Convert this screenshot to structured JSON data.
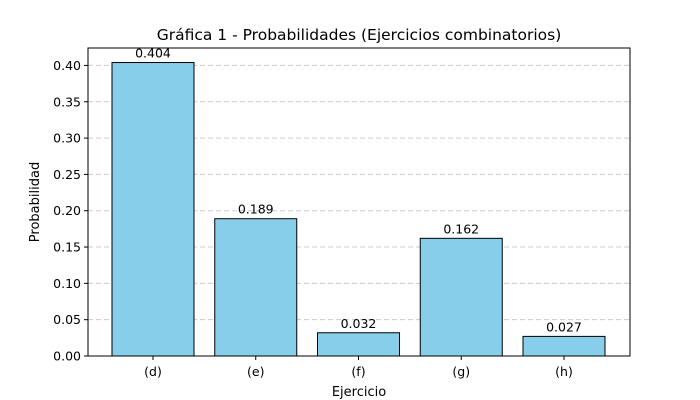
{
  "chart_data": {
    "type": "bar",
    "title": "Gráfica 1 - Probabilidades (Ejercicios combinatorios)",
    "xlabel": "Ejercicio",
    "ylabel": "Probabilidad",
    "categories": [
      "(d)",
      "(e)",
      "(f)",
      "(g)",
      "(h)"
    ],
    "values": [
      0.404,
      0.189,
      0.032,
      0.162,
      0.027
    ],
    "data_labels": [
      "0.404",
      "0.189",
      "0.032",
      "0.162",
      "0.027"
    ],
    "y_ticks": [
      0.0,
      0.05,
      0.1,
      0.15,
      0.2,
      0.25,
      0.3,
      0.35,
      0.4
    ],
    "y_tick_labels": [
      "0.00",
      "0.05",
      "0.10",
      "0.15",
      "0.20",
      "0.25",
      "0.30",
      "0.35",
      "0.40"
    ],
    "ylim": [
      0,
      0.424
    ],
    "grid": "y-dashed",
    "bar_color": "#87CEEB",
    "bar_edge_color": "#000000"
  }
}
